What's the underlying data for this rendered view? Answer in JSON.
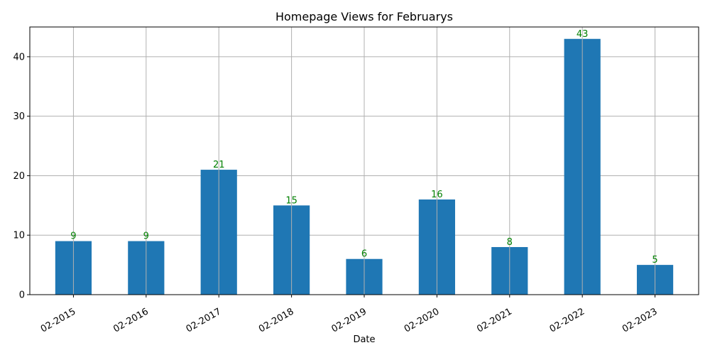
{
  "chart_data": {
    "type": "bar",
    "title": "Homepage Views for Februarys",
    "xlabel": "Date",
    "ylabel": "",
    "categories": [
      "02-2015",
      "02-2016",
      "02-2017",
      "02-2018",
      "02-2019",
      "02-2020",
      "02-2021",
      "02-2022",
      "02-2023"
    ],
    "values": [
      9,
      9,
      21,
      15,
      6,
      16,
      8,
      43,
      5
    ],
    "ylim": [
      0,
      45
    ],
    "yticks": [
      0,
      10,
      20,
      30,
      40
    ],
    "grid": true,
    "colors": {
      "bar": "#1f77b4",
      "data_label": "#008000",
      "grid": "#b0b0b0",
      "axis": "#000000"
    }
  }
}
